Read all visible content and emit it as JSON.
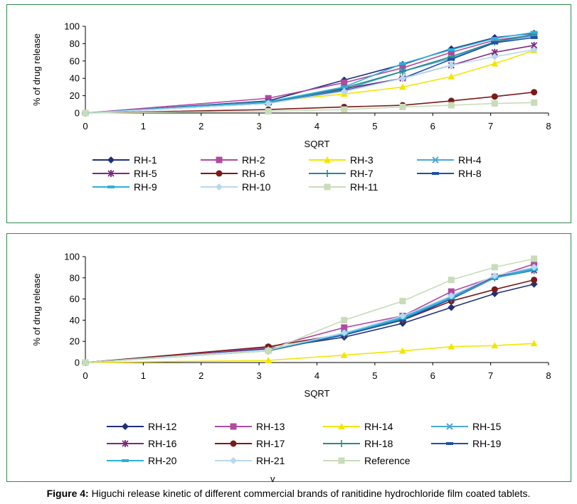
{
  "caption": {
    "label": "Figure 4:",
    "text": "Higuchi release kinetic of different commercial brands of ranitidine hydrochloride film coated tablets."
  },
  "stray_text": "v",
  "chart_data": [
    {
      "type": "line",
      "xlabel": "SQRT",
      "ylabel": "% of drug release",
      "xlim": [
        0,
        8
      ],
      "ylim": [
        0,
        100
      ],
      "xticks": [
        0,
        1,
        2,
        3,
        4,
        5,
        6,
        7,
        8
      ],
      "yticks": [
        0,
        20,
        40,
        60,
        80,
        100
      ],
      "grid": false,
      "legend_position": "bottom",
      "x": [
        0,
        3.16,
        4.47,
        5.48,
        6.32,
        7.07,
        7.75
      ],
      "series": [
        {
          "name": "RH-1",
          "color": "#1f2f7a",
          "marker": "diamond",
          "values": [
            0,
            14,
            38,
            56,
            74,
            87,
            92
          ]
        },
        {
          "name": "RH-2",
          "color": "#b04aa0",
          "marker": "square",
          "values": [
            0,
            17,
            35,
            52,
            70,
            84,
            90
          ]
        },
        {
          "name": "RH-3",
          "color": "#f2e600",
          "marker": "triangle",
          "values": [
            0,
            13,
            22,
            30,
            42,
            57,
            72
          ]
        },
        {
          "name": "RH-4",
          "color": "#4aa8d6",
          "marker": "x",
          "values": [
            0,
            12,
            27,
            48,
            63,
            82,
            89
          ]
        },
        {
          "name": "RH-5",
          "color": "#7a2a7a",
          "marker": "star",
          "values": [
            0,
            13,
            28,
            40,
            55,
            70,
            78
          ]
        },
        {
          "name": "RH-6",
          "color": "#7a1a1a",
          "marker": "circle",
          "values": [
            0,
            4,
            7,
            9,
            14,
            19,
            24
          ]
        },
        {
          "name": "RH-7",
          "color": "#2a8a8a",
          "marker": "plus",
          "values": [
            0,
            12,
            29,
            48,
            65,
            82,
            91
          ]
        },
        {
          "name": "RH-8",
          "color": "#1f4fa8",
          "marker": "dash",
          "values": [
            0,
            11,
            26,
            40,
            62,
            81,
            87
          ]
        },
        {
          "name": "RH-9",
          "color": "#2ab0e0",
          "marker": "dash",
          "values": [
            0,
            13,
            30,
            57,
            73,
            86,
            93
          ]
        },
        {
          "name": "RH-10",
          "color": "#b8d8f0",
          "marker": "diamond",
          "values": [
            0,
            11,
            25,
            40,
            55,
            65,
            73
          ]
        },
        {
          "name": "RH-11",
          "color": "#c8dcb8",
          "marker": "square",
          "values": [
            0,
            2,
            4,
            7,
            9,
            11,
            12
          ]
        }
      ]
    },
    {
      "type": "line",
      "xlabel": "SQRT",
      "ylabel": "% of drug release",
      "xlim": [
        0,
        8
      ],
      "ylim": [
        0,
        100
      ],
      "xticks": [
        0,
        1,
        2,
        3,
        4,
        5,
        6,
        7,
        8
      ],
      "yticks": [
        0,
        20,
        40,
        60,
        80,
        100
      ],
      "grid": false,
      "legend_position": "bottom",
      "x": [
        0,
        3.16,
        4.47,
        5.48,
        6.32,
        7.07,
        7.75
      ],
      "series": [
        {
          "name": "RH-12",
          "color": "#1f2f7a",
          "marker": "diamond",
          "values": [
            0,
            13,
            24,
            37,
            52,
            65,
            74
          ]
        },
        {
          "name": "RH-13",
          "color": "#b04aa0",
          "marker": "square",
          "values": [
            0,
            14,
            33,
            44,
            67,
            81,
            93
          ]
        },
        {
          "name": "RH-14",
          "color": "#f2e600",
          "marker": "triangle",
          "values": [
            0,
            2,
            7,
            11,
            15,
            16,
            18
          ]
        },
        {
          "name": "RH-15",
          "color": "#4aa8d6",
          "marker": "x",
          "values": [
            0,
            12,
            28,
            43,
            62,
            81,
            89
          ]
        },
        {
          "name": "RH-16",
          "color": "#7a2a7a",
          "marker": "star",
          "values": [
            0,
            12,
            27,
            41,
            61,
            81,
            87
          ]
        },
        {
          "name": "RH-17",
          "color": "#7a1a1a",
          "marker": "circle",
          "values": [
            0,
            15,
            27,
            40,
            58,
            69,
            78
          ]
        },
        {
          "name": "RH-18",
          "color": "#2a8a8a",
          "marker": "plus",
          "values": [
            0,
            11,
            26,
            41,
            60,
            80,
            87
          ]
        },
        {
          "name": "RH-19",
          "color": "#1f4fa8",
          "marker": "dash",
          "values": [
            0,
            12,
            26,
            40,
            60,
            80,
            88
          ]
        },
        {
          "name": "RH-20",
          "color": "#2ab0e0",
          "marker": "dash",
          "values": [
            0,
            12,
            27,
            42,
            61,
            80,
            88
          ]
        },
        {
          "name": "RH-21",
          "color": "#b8d8f0",
          "marker": "diamond",
          "values": [
            0,
            12,
            28,
            44,
            63,
            82,
            90
          ]
        },
        {
          "name": "Reference",
          "color": "#c8dcb8",
          "marker": "square",
          "values": [
            0,
            11,
            40,
            58,
            78,
            90,
            98
          ]
        }
      ]
    }
  ]
}
